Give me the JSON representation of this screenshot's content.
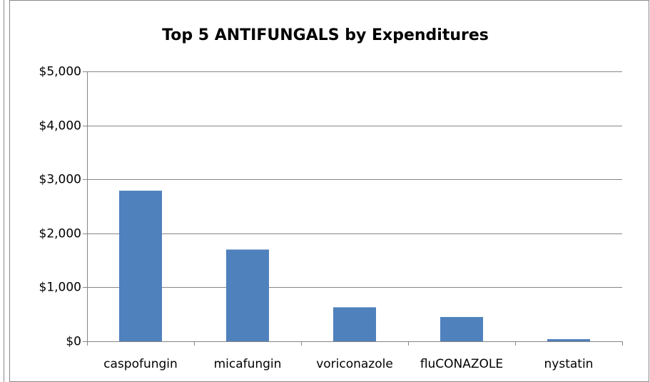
{
  "chart_data": {
    "type": "bar",
    "title": "Top 5 ANTIFUNGALS by Expenditures",
    "categories": [
      "caspofungin",
      "micafungin",
      "voriconazole",
      "fluCONAZOLE",
      "nystatin"
    ],
    "values": [
      2790,
      1700,
      630,
      450,
      40
    ],
    "color": "#4f81bd",
    "ylim": [
      0,
      5000
    ],
    "yticks": [
      {
        "value": 0,
        "label": "$0"
      },
      {
        "value": 1000,
        "label": "$1,000"
      },
      {
        "value": 2000,
        "label": "$2,000"
      },
      {
        "value": 3000,
        "label": "$3,000"
      },
      {
        "value": 4000,
        "label": "$4,000"
      },
      {
        "value": 5000,
        "label": "$5,000"
      }
    ],
    "grid": true
  }
}
